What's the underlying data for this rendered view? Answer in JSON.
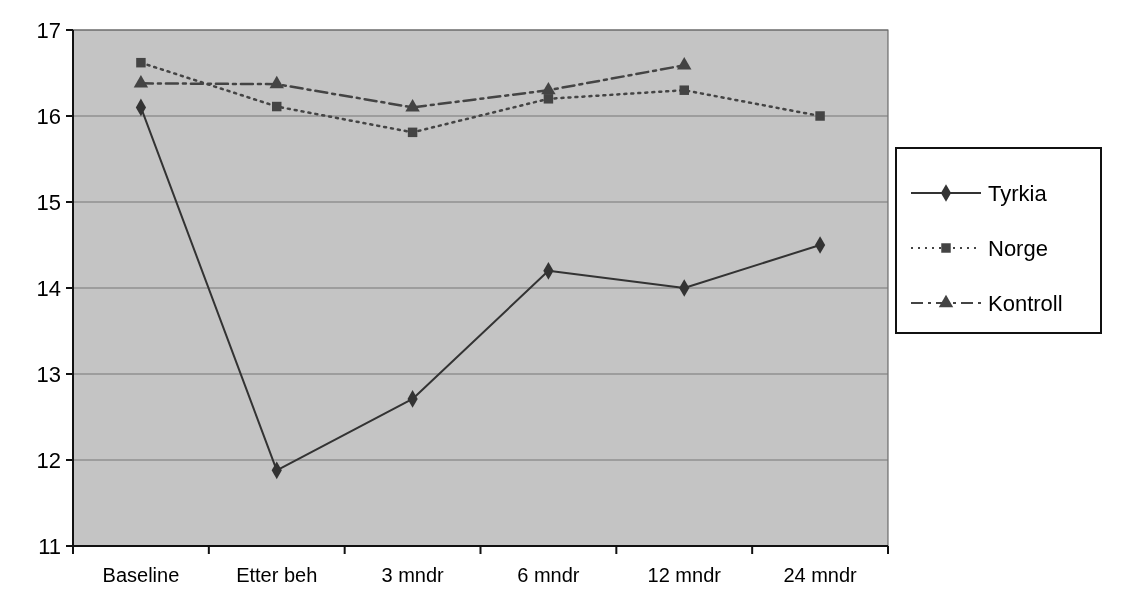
{
  "chart_data": {
    "type": "line",
    "categories": [
      "Baseline",
      "Etter beh",
      "3 mndr",
      "6 mndr",
      "12 mndr",
      "24 mndr"
    ],
    "series": [
      {
        "name": "Tyrkia",
        "color": "#333333",
        "values": [
          16.1,
          11.88,
          12.71,
          14.2,
          14.0,
          14.5
        ],
        "marker": "diamond",
        "line_style": "solid"
      },
      {
        "name": "Norge",
        "color": "#444444",
        "values": [
          16.62,
          16.11,
          15.81,
          16.2,
          16.3,
          16.0
        ],
        "marker": "square",
        "line_style": "dotted"
      },
      {
        "name": "Kontroll",
        "color": "#444444",
        "values": [
          16.38,
          16.37,
          16.1,
          16.3,
          16.59,
          null
        ],
        "marker": "triangle",
        "line_style": "dashdot"
      }
    ],
    "ylim": [
      11,
      17
    ],
    "yticks": [
      11,
      12,
      13,
      14,
      15,
      16,
      17
    ],
    "grid": "y",
    "legend": "right"
  }
}
